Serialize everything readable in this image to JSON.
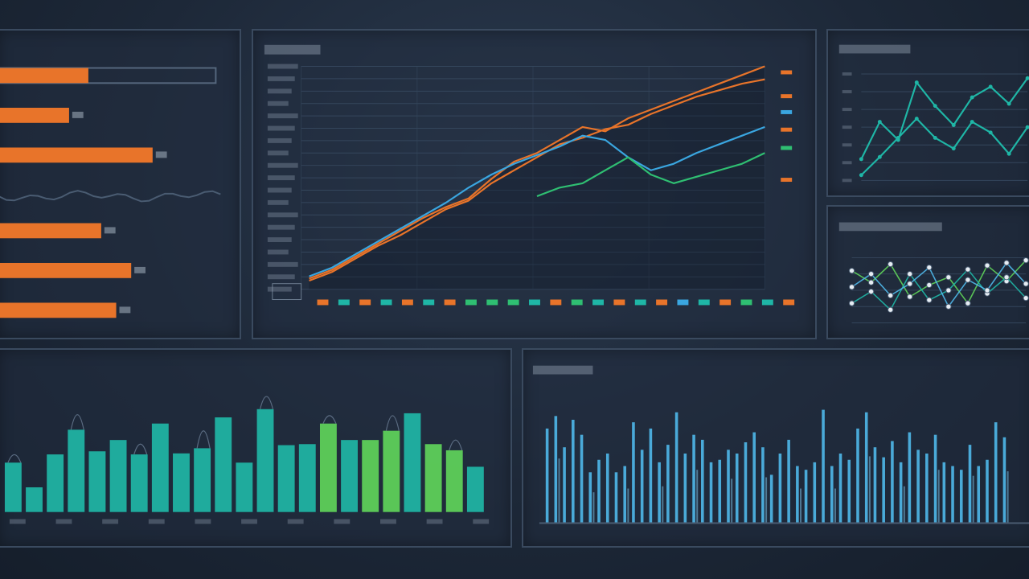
{
  "colors": {
    "orange": "#e8742a",
    "blue": "#3aa6e0",
    "green": "#2fbf72",
    "teal": "#1fb6a6",
    "lime": "#5fd45a",
    "cyan": "#4fb8ea",
    "grid": "#34465c"
  },
  "charts": {
    "hbar": {
      "type": "bar",
      "orientation": "horizontal",
      "values": [
        42,
        33,
        72,
        48,
        62,
        55
      ],
      "xlim": [
        0,
        100
      ],
      "track_first": true
    },
    "main": {
      "type": "line",
      "title": "",
      "ylim": [
        0,
        100
      ],
      "x": [
        0,
        1,
        2,
        3,
        4,
        5,
        6,
        7,
        8,
        9,
        10,
        11,
        12,
        13,
        14,
        15,
        16,
        17,
        18,
        19,
        20
      ],
      "series": [
        {
          "color_key": "orange",
          "values": [
            2,
            6,
            12,
            18,
            24,
            30,
            35,
            39,
            48,
            56,
            60,
            66,
            72,
            70,
            76,
            80,
            84,
            88,
            92,
            96,
            100
          ]
        },
        {
          "color_key": "orange",
          "values": [
            1,
            5,
            11,
            17,
            22,
            28,
            34,
            38,
            46,
            52,
            58,
            64,
            67,
            71,
            73,
            78,
            82,
            86,
            89,
            92,
            94
          ]
        },
        {
          "color_key": "blue",
          "values": [
            3,
            7,
            13,
            19,
            25,
            31,
            37,
            44,
            50,
            55,
            59,
            63,
            68,
            66,
            58,
            52,
            55,
            60,
            64,
            68,
            72
          ]
        },
        {
          "color_key": "green",
          "values": [
            0,
            0,
            0,
            0,
            0,
            0,
            0,
            0,
            0,
            0,
            40,
            44,
            46,
            52,
            58,
            50,
            46,
            49,
            52,
            55,
            60
          ]
        }
      ]
    },
    "topright": {
      "type": "line",
      "ylim": [
        0,
        100
      ],
      "x": [
        0,
        1,
        2,
        3,
        4,
        5,
        6,
        7,
        8,
        9
      ],
      "series": [
        {
          "color_key": "teal",
          "values": [
            20,
            55,
            38,
            92,
            70,
            52,
            78,
            88,
            72,
            96
          ]
        },
        {
          "color_key": "teal",
          "values": [
            5,
            22,
            40,
            58,
            40,
            30,
            55,
            45,
            25,
            50
          ]
        }
      ]
    },
    "midright": {
      "type": "scatter",
      "ylim": [
        0,
        100
      ],
      "x": [
        0,
        1,
        2,
        3,
        4,
        5,
        6,
        7,
        8,
        9
      ],
      "series": [
        {
          "color_key": "lime",
          "values": [
            80,
            62,
            90,
            40,
            58,
            70,
            30,
            88,
            64,
            96
          ]
        },
        {
          "color_key": "teal",
          "values": [
            30,
            48,
            20,
            75,
            35,
            50,
            82,
            45,
            70,
            38
          ]
        },
        {
          "color_key": "cyan",
          "values": [
            55,
            75,
            42,
            60,
            85,
            25,
            66,
            50,
            92,
            60
          ]
        }
      ]
    },
    "bottomleft": {
      "type": "bar",
      "ylim": [
        0,
        100
      ],
      "values": [
        48,
        24,
        56,
        80,
        59,
        70,
        56,
        86,
        57,
        62,
        92,
        48,
        100,
        65,
        66,
        86,
        70,
        70,
        79,
        96,
        66,
        60,
        44
      ],
      "lime_from": 15
    },
    "bottomright": {
      "type": "bar",
      "ylim": [
        0,
        100
      ],
      "values": [
        75,
        85,
        60,
        82,
        70,
        40,
        50,
        55,
        40,
        45,
        80,
        58,
        75,
        48,
        62,
        88,
        55,
        70,
        66,
        48,
        50,
        58,
        55,
        64,
        72,
        60,
        38,
        55,
        66,
        45,
        42,
        48,
        90,
        45,
        55,
        50,
        75,
        88,
        60,
        52,
        65,
        48,
        72,
        58,
        55,
        70,
        48,
        45,
        42,
        62,
        45,
        50,
        80,
        68
      ]
    }
  }
}
